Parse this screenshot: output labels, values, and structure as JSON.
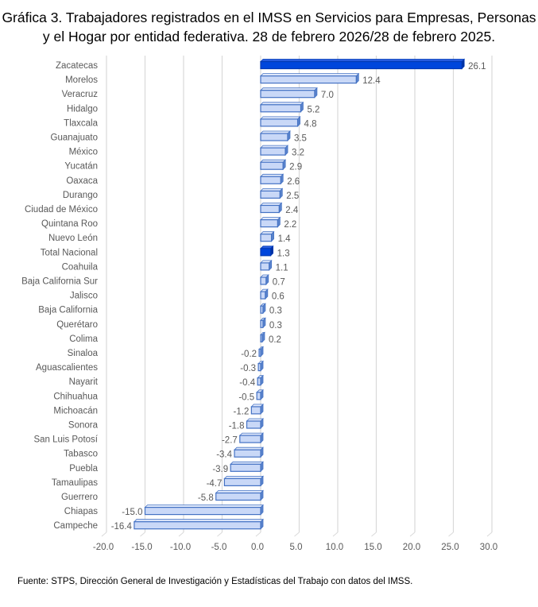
{
  "title_lines": [
    "Gráfica 3. Trabajadores registrados en el IMSS en Servicios para Empresas, Personas",
    "y el Hogar por entidad federativa. 28 de febrero 2026/28 de febrero 2025."
  ],
  "source": "Fuente: STPS, Dirección General de Investigación y Estadísticas del Trabajo con datos del IMSS.",
  "colors": {
    "bar_fill": "#c9d8f7",
    "bar_edge": "#4472c4",
    "highlight_fill": "#0046dc",
    "grid": "#d9d9d9",
    "label_text": "#595959"
  },
  "chart_data": {
    "type": "bar",
    "orientation": "horizontal",
    "title": "Gráfica 3. Trabajadores registrados en el IMSS en Servicios para Empresas, Personas y el Hogar por entidad federativa. 28 de febrero 2026/28 de febrero 2025.",
    "xlabel": "",
    "ylabel": "",
    "xlim": [
      -20,
      30
    ],
    "x_ticks": [
      "-20.0",
      "-15.0",
      "-10.0",
      "-5.0",
      "0.0",
      "5.0",
      "10.0",
      "15.0",
      "20.0",
      "25.0",
      "30.0"
    ],
    "x_tick_values": [
      -20,
      -15,
      -10,
      -5,
      0,
      5,
      10,
      15,
      20,
      25,
      30
    ],
    "grid": true,
    "legend": "none",
    "categories": [
      "Zacatecas",
      "Morelos",
      "Veracruz",
      "Hidalgo",
      "Tlaxcala",
      "Guanajuato",
      "México",
      "Yucatán",
      "Oaxaca",
      "Durango",
      "Ciudad de México",
      "Quintana Roo",
      "Nuevo León",
      "Total Nacional",
      "Coahuila",
      "Baja California Sur",
      "Jalisco",
      "Baja California",
      "Querétaro",
      "Colima",
      "Sinaloa",
      "Aguascalientes",
      "Nayarit",
      "Chihuahua",
      "Michoacán",
      "Sonora",
      "San Luis Potosí",
      "Tabasco",
      "Puebla",
      "Tamaulipas",
      "Guerrero",
      "Chiapas",
      "Campeche"
    ],
    "values": [
      26.1,
      12.4,
      7.0,
      5.2,
      4.8,
      3.5,
      3.2,
      2.9,
      2.6,
      2.5,
      2.4,
      2.2,
      1.4,
      1.3,
      1.1,
      0.7,
      0.6,
      0.3,
      0.3,
      0.2,
      -0.2,
      -0.3,
      -0.4,
      -0.5,
      -1.2,
      -1.8,
      -2.7,
      -3.4,
      -3.9,
      -4.7,
      -5.8,
      -15.0,
      -16.4
    ],
    "value_labels": [
      "26.1",
      "12.4",
      "7.0",
      "5.2",
      "4.8",
      "3.5",
      "3.2",
      "2.9",
      "2.6",
      "2.5",
      "2.4",
      "2.2",
      "1.4",
      "1.3",
      "1.1",
      "0.7",
      "0.6",
      "0.3",
      "0.3",
      "0.2",
      "-0.2",
      "-0.3",
      "-0.4",
      "-0.5",
      "-1.2",
      "-1.8",
      "-2.7",
      "-3.4",
      "-3.9",
      "-4.7",
      "-5.8",
      "-15.0",
      "-16.4"
    ],
    "highlighted": [
      "Zacatecas",
      "Total Nacional"
    ]
  }
}
